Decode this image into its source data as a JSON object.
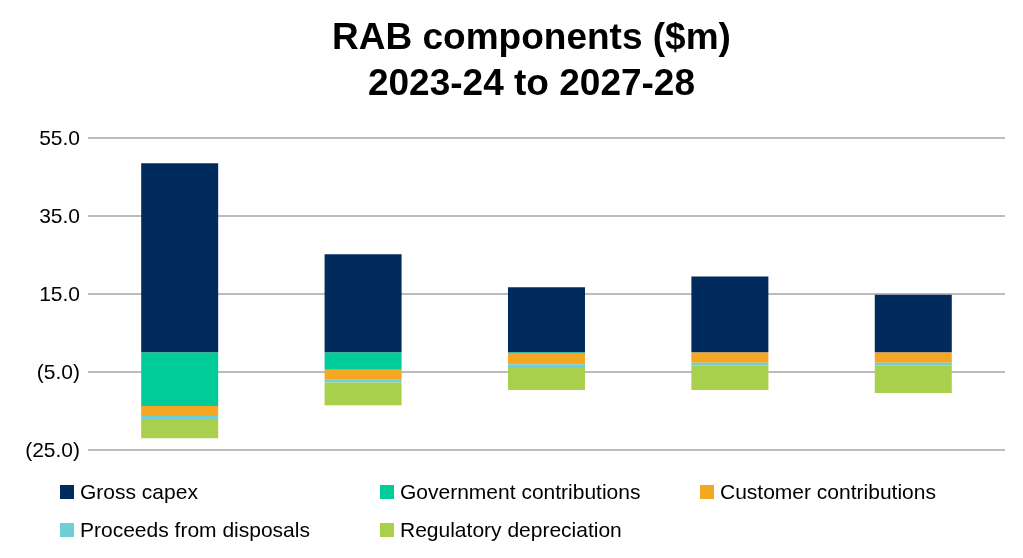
{
  "chart_data": {
    "type": "bar",
    "title": "RAB components ($m)",
    "subtitle": "2023-24 to 2027-28",
    "categories": [
      null,
      null,
      null,
      null,
      null
    ],
    "stacked": true,
    "series": [
      {
        "name": "Gross capex",
        "color": "#002b5c",
        "values": [
          48.5,
          25.2,
          16.7,
          19.5,
          14.8
        ]
      },
      {
        "name": "Government contributions",
        "color": "#00cc99",
        "values": [
          -13.7,
          -4.4,
          -0.3,
          0,
          0
        ]
      },
      {
        "name": "Customer contributions",
        "color": "#f5a623",
        "values": [
          -2.6,
          -2.6,
          -2.7,
          -2.6,
          -2.6
        ]
      },
      {
        "name": "Proceeds from disposals",
        "color": "#6fcfd6",
        "values": [
          -1.0,
          -0.7,
          -0.7,
          -0.7,
          -0.7
        ]
      },
      {
        "name": "Regulatory depreciation",
        "color": "#a8d04c",
        "values": [
          -4.7,
          -5.8,
          -5.9,
          -6.3,
          -7.1
        ]
      }
    ],
    "ylim": [
      -25,
      55
    ],
    "yticks": [
      {
        "value": 55,
        "label": "55.0"
      },
      {
        "value": 35,
        "label": "35.0"
      },
      {
        "value": 15,
        "label": "15.0"
      },
      {
        "value": -5,
        "label": "(5.0)"
      },
      {
        "value": -25,
        "label": "(25.0)"
      }
    ],
    "grid": "y",
    "legend": "bottom",
    "tick_labels": "y"
  }
}
